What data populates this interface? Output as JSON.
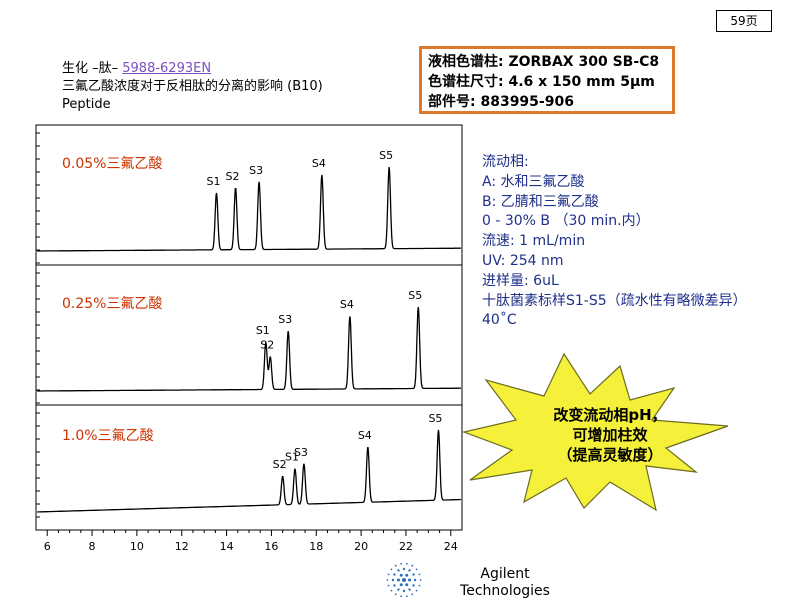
{
  "page": {
    "badge": "59页"
  },
  "header": {
    "line1_prefix": "生化 –肽– ",
    "line1_link": "5988-6293EN",
    "line2": "三氟乙酸浓度对于反相肽的分离的影响 (B10)",
    "line3": "Peptide"
  },
  "column_info": {
    "line1": "液相色谱柱: ZORBAX 300 SB-C8",
    "line2": "色谱柱尺寸: 4.6 x 150 mm 5μm",
    "line3": "部件号: 883995-906"
  },
  "conditions": [
    "流动相:",
    "A: 水和三氟乙酸",
    "B: 乙腈和三氟乙酸",
    "0 - 30% B （30 min.内）",
    "流速:  1 mL/min",
    "UV:  254 nm",
    "进样量:  6uL",
    "十肽菌素标样S1-S5（疏水性有略微差异）",
    "40˚C"
  ],
  "callout": {
    "line1": "改变流动相pH，",
    "line2": "可增加柱效",
    "line3": "（提高灵敏度）"
  },
  "footer": {
    "line1": "Agilent",
    "line2": "Technologies"
  },
  "colors": {
    "trace": "#000000",
    "label_red": "#cc3300",
    "conditions_blue": "#1f2f8a",
    "frame_orange": "#e0782a",
    "burst_fill": "#f5f03a"
  },
  "chart_data": {
    "type": "line",
    "xlim": [
      5.5,
      24.5
    ],
    "x_ticks": [
      6,
      8,
      10,
      12,
      14,
      16,
      18,
      20,
      22,
      24
    ],
    "panels": [
      {
        "label": "0.05%三氟乙酸",
        "baseline": 0.02,
        "peaks": [
          {
            "name": "S1",
            "x": 13.55,
            "height": 0.78
          },
          {
            "name": "S2",
            "x": 14.4,
            "height": 0.85
          },
          {
            "name": "S3",
            "x": 15.45,
            "height": 0.93
          },
          {
            "name": "S4",
            "x": 18.25,
            "height": 1.02
          },
          {
            "name": "S5",
            "x": 21.25,
            "height": 1.12
          }
        ]
      },
      {
        "label": "0.25%三氟乙酸",
        "baseline": 0.02,
        "peaks": [
          {
            "name": "S1",
            "x": 15.75,
            "height": 0.65
          },
          {
            "name": "S2",
            "x": 15.95,
            "height": 0.45
          },
          {
            "name": "S3",
            "x": 16.75,
            "height": 0.8
          },
          {
            "name": "S4",
            "x": 19.5,
            "height": 1.0
          },
          {
            "name": "S5",
            "x": 22.55,
            "height": 1.12
          }
        ]
      },
      {
        "label": "1.0%三氟乙酸",
        "baseline": 0.1,
        "peaks": [
          {
            "name": "S2",
            "x": 16.5,
            "height": 0.44
          },
          {
            "name": "S1",
            "x": 17.05,
            "height": 0.55
          },
          {
            "name": "S3",
            "x": 17.45,
            "height": 0.62
          },
          {
            "name": "S4",
            "x": 20.3,
            "height": 0.85
          },
          {
            "name": "S5",
            "x": 23.45,
            "height": 1.08
          }
        ]
      }
    ]
  }
}
